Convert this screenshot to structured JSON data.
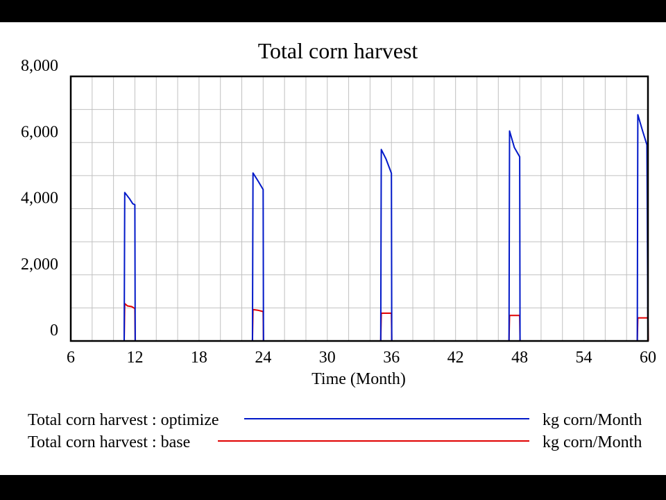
{
  "chart_data": {
    "type": "line",
    "title": "Total corn harvest",
    "xlabel": "Time (Month)",
    "ylabel": "",
    "xlim": [
      6,
      60
    ],
    "ylim": [
      0,
      8000
    ],
    "grid": true,
    "legend_position": "bottom",
    "x_ticks": [
      {
        "value": 6,
        "label": "6"
      },
      {
        "value": 12,
        "label": "12"
      },
      {
        "value": 18,
        "label": "18"
      },
      {
        "value": 24,
        "label": "24"
      },
      {
        "value": 30,
        "label": "30"
      },
      {
        "value": 36,
        "label": "36"
      },
      {
        "value": 42,
        "label": "42"
      },
      {
        "value": 48,
        "label": "48"
      },
      {
        "value": 54,
        "label": "54"
      },
      {
        "value": 60,
        "label": "60"
      }
    ],
    "y_ticks": [
      {
        "value": 0,
        "label": "0"
      },
      {
        "value": 2000,
        "label": "2,000"
      },
      {
        "value": 4000,
        "label": "4,000"
      },
      {
        "value": 6000,
        "label": "6,000"
      },
      {
        "value": 8000,
        "label": "8,000"
      }
    ],
    "series": [
      {
        "name": "Total corn harvest : optimize",
        "unit": "kg corn/Month",
        "color": "#0018c8",
        "points": [
          [
            6,
            0
          ],
          [
            11,
            0
          ],
          [
            11.05,
            4490
          ],
          [
            11.5,
            4300
          ],
          [
            11.8,
            4150
          ],
          [
            12,
            4120
          ],
          [
            12.03,
            0
          ],
          [
            23,
            0
          ],
          [
            23.05,
            5080
          ],
          [
            23.5,
            4850
          ],
          [
            24,
            4580
          ],
          [
            24.03,
            0
          ],
          [
            35,
            0
          ],
          [
            35.05,
            5790
          ],
          [
            35.5,
            5500
          ],
          [
            36,
            5070
          ],
          [
            36.03,
            0
          ],
          [
            47,
            0
          ],
          [
            47.05,
            6350
          ],
          [
            47.5,
            5850
          ],
          [
            48,
            5570
          ],
          [
            48.03,
            0
          ],
          [
            59,
            0
          ],
          [
            59.05,
            6840
          ],
          [
            59.5,
            6350
          ],
          [
            59.9,
            5930
          ],
          [
            60,
            0
          ]
        ]
      },
      {
        "name": "Total corn harvest : base",
        "unit": "kg corn/Month",
        "color": "#e00000",
        "points": [
          [
            6,
            0
          ],
          [
            11,
            0
          ],
          [
            11.05,
            1130
          ],
          [
            11.3,
            1060
          ],
          [
            11.7,
            1040
          ],
          [
            12,
            980
          ],
          [
            12.03,
            0
          ],
          [
            23,
            0
          ],
          [
            23.05,
            950
          ],
          [
            23.5,
            930
          ],
          [
            24,
            890
          ],
          [
            24.03,
            0
          ],
          [
            35,
            0
          ],
          [
            35.05,
            840
          ],
          [
            36,
            840
          ],
          [
            36.03,
            0
          ],
          [
            47,
            0
          ],
          [
            47.05,
            770
          ],
          [
            48,
            770
          ],
          [
            48.03,
            0
          ],
          [
            59,
            0
          ],
          [
            59.05,
            700
          ],
          [
            60,
            700
          ],
          [
            60.03,
            0
          ]
        ]
      }
    ]
  }
}
